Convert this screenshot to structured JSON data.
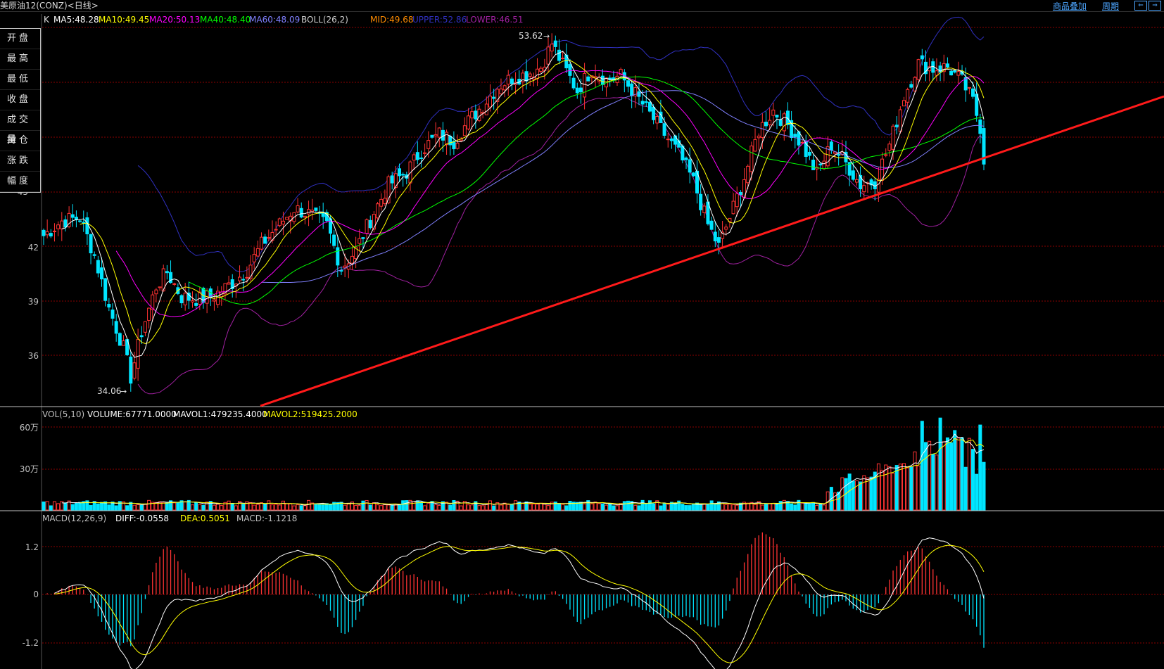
{
  "title": "美原油12(CONZ)<日线>",
  "toplinks": {
    "add": "商品叠加",
    "period": "周期"
  },
  "nav": {
    "left": "⇐",
    "right": "⇒"
  },
  "quote_panel": {
    "rows": [
      {
        "label": "开盘",
        "value": ""
      },
      {
        "label": "最高",
        "value": ""
      },
      {
        "label": "最低",
        "value": ""
      },
      {
        "label": "收盘",
        "value": ""
      },
      {
        "label": "成交量",
        "value": ""
      },
      {
        "label": "持仓",
        "value": ""
      },
      {
        "label": "涨跌",
        "value": ""
      },
      {
        "label": "幅度",
        "value": ""
      }
    ]
  },
  "kline": {
    "prefix": "K",
    "ma5": "MA5:48.28",
    "ma10": "MA10:49.45",
    "ma20": "MA20:50.13",
    "ma40": "MA40:48.40",
    "ma60": "MA60:48.09",
    "boll": "BOLL(26,2)",
    "mid": "MID:49.68",
    "upper": "UPPER:52.86",
    "lower": "LOWER:46.51",
    "high_label": "53.62",
    "low_label": "34.06",
    "axis": [
      "45",
      "42",
      "39",
      "36"
    ]
  },
  "volume": {
    "header": "VOL(5,10)",
    "volume": "VOLUME:67771.0000",
    "mavol1": "MAVOL1:479235.4000",
    "mavol2": "MAVOL2:519425.2000",
    "axis": [
      "60万",
      "30万"
    ]
  },
  "macd": {
    "header": "MACD(12,26,9)",
    "diff": "DIFF:-0.0558",
    "dea": "DEA:0.5051",
    "macd": "MACD:-1.1218",
    "axis": [
      "1.2",
      "0",
      "-1.2"
    ]
  },
  "colors": {
    "up": "#ff3333",
    "down": "#00e5ff",
    "ma5": "#ffffff",
    "ma10": "#ffff00",
    "ma20": "#ff00ff",
    "ma40": "#00ff00",
    "ma60": "#8080ff",
    "boll": "#3030c0",
    "lower": "#a020a0",
    "trend": "#ff1a1a",
    "grid": "#8b0000"
  },
  "chart_data": {
    "type": "line",
    "price_axis_ticks": [
      36,
      39,
      42,
      45
    ],
    "ylim": [
      33.5,
      54.5
    ],
    "close_anchors": [
      [
        0,
        42.6
      ],
      [
        5,
        43.4
      ],
      [
        10,
        43.6
      ],
      [
        14,
        41.5
      ],
      [
        18,
        38.6
      ],
      [
        22,
        36.4
      ],
      [
        24,
        34.8
      ],
      [
        27,
        37.3
      ],
      [
        31,
        39.8
      ],
      [
        34,
        40.6
      ],
      [
        38,
        39.2
      ],
      [
        43,
        39.1
      ],
      [
        47,
        39.3
      ],
      [
        52,
        40.0
      ],
      [
        56,
        40.7
      ],
      [
        60,
        42.1
      ],
      [
        64,
        43.0
      ],
      [
        69,
        44.1
      ],
      [
        73,
        43.8
      ],
      [
        78,
        43.2
      ],
      [
        82,
        40.8
      ],
      [
        86,
        41.8
      ],
      [
        91,
        43.9
      ],
      [
        95,
        45.4
      ],
      [
        100,
        46.1
      ],
      [
        104,
        47.3
      ],
      [
        109,
        48.2
      ],
      [
        113,
        47.8
      ],
      [
        117,
        48.9
      ],
      [
        121,
        49.8
      ],
      [
        125,
        50.8
      ],
      [
        129,
        51.3
      ],
      [
        133,
        51.5
      ],
      [
        137,
        51.9
      ],
      [
        140,
        53.2
      ],
      [
        143,
        52.0
      ],
      [
        147,
        50.6
      ],
      [
        151,
        51.8
      ],
      [
        155,
        51.2
      ],
      [
        159,
        51.4
      ],
      [
        163,
        50.4
      ],
      [
        167,
        49.3
      ],
      [
        171,
        48.2
      ],
      [
        175,
        47.1
      ],
      [
        179,
        45.6
      ],
      [
        183,
        43.2
      ],
      [
        186,
        42.0
      ],
      [
        189,
        43.6
      ],
      [
        193,
        45.8
      ],
      [
        197,
        48.4
      ],
      [
        201,
        49.5
      ],
      [
        205,
        48.7
      ],
      [
        209,
        47.6
      ],
      [
        213,
        46.0
      ],
      [
        217,
        47.6
      ],
      [
        221,
        46.6
      ],
      [
        225,
        45.4
      ],
      [
        229,
        45.6
      ],
      [
        233,
        47.6
      ],
      [
        237,
        50.3
      ],
      [
        241,
        52.1
      ],
      [
        245,
        51.8
      ],
      [
        249,
        51.9
      ],
      [
        253,
        51.1
      ],
      [
        256,
        50.0
      ],
      [
        258,
        48.6
      ],
      [
        259,
        46.8
      ]
    ],
    "volume_axis_ticks": [
      300000,
      600000
    ],
    "macd_axis_ticks": [
      -1.2,
      0,
      1.2
    ]
  }
}
